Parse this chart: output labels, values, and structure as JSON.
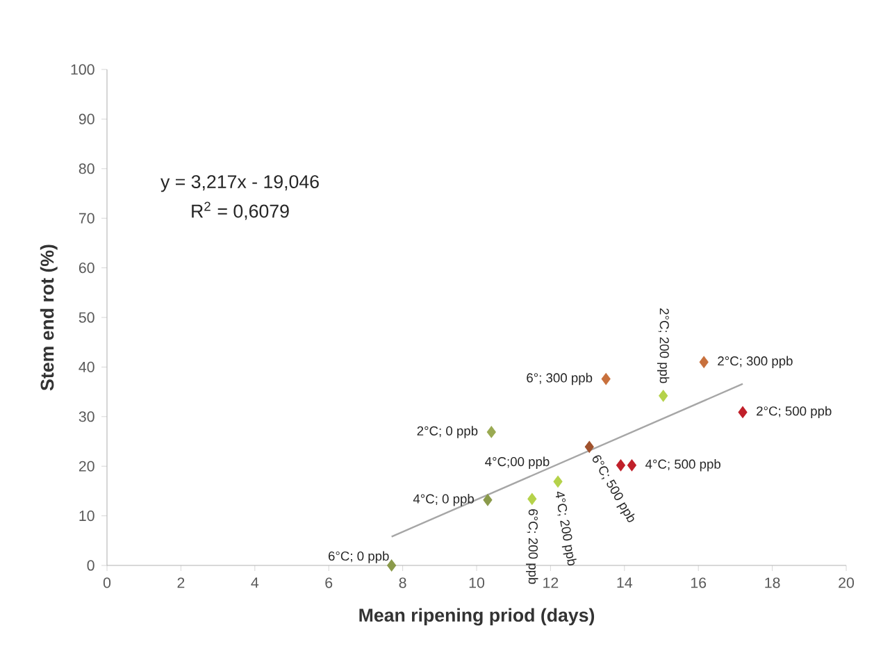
{
  "chart_data": {
    "type": "scatter",
    "xlabel": "Mean ripening priod (days)",
    "ylabel": "Stem end rot (%)",
    "xlim": [
      0,
      20
    ],
    "xticks": [
      0,
      2,
      4,
      6,
      8,
      10,
      12,
      14,
      16,
      18,
      20
    ],
    "ylim": [
      0,
      100
    ],
    "yticks": [
      0,
      10,
      20,
      30,
      40,
      50,
      60,
      70,
      80,
      90,
      100
    ],
    "marker": "diamond",
    "grid": false,
    "series": [
      {
        "x": [
          7.7,
          10.3,
          10.4,
          11.5,
          12.2,
          13.05,
          13.9,
          14.2,
          13.5,
          15.05,
          16.15,
          17.2
        ],
        "values": [
          0,
          13.2,
          26.9,
          13.4,
          16.9,
          23.9,
          20.2,
          20.2,
          37.6,
          34.2,
          41,
          30.9
        ],
        "colors": [
          "#8a9a4a",
          "#8a9a4a",
          "#9aaa52",
          "#b5d24a",
          "#b5d24a",
          "#a0522d",
          "#c0202a",
          "#c0202a",
          "#c8703c",
          "#b5d24a",
          "#c8703c",
          "#c0202a"
        ]
      },
      {
        "type": "line",
        "marker": "none",
        "color": "#a6a6a6",
        "x": [
          7.7,
          17.2
        ],
        "values": [
          5.8,
          36.6
        ]
      }
    ],
    "annotations": [
      {
        "text": "6°C; 0 ppb",
        "x": 7.7,
        "y": 0
      },
      {
        "text": "4°C; 0 ppb",
        "x": 10.3,
        "y": 13.2
      },
      {
        "text": "2°C; 0 ppb",
        "x": 10.4,
        "y": 26.9
      },
      {
        "text": "6°C; 200 ppb",
        "x": 11.5,
        "y": 13.4
      },
      {
        "text": "4°C; 200 ppb",
        "x": 12.2,
        "y": 16.9
      },
      {
        "text": "4°C;00 ppb",
        "x": 12.2,
        "y": 16.9
      },
      {
        "text": "6°C; 500 ppb",
        "x": 13.05,
        "y": 23.9
      },
      {
        "text": "4°C; 500 ppb",
        "x": 14.2,
        "y": 20.2
      },
      {
        "text": "6°; 300 ppb",
        "x": 13.5,
        "y": 37.6
      },
      {
        "text": "2°C; 200 ppb",
        "x": 15.05,
        "y": 34.2
      },
      {
        "text": "2°C; 300 ppb",
        "x": 16.15,
        "y": 41
      },
      {
        "text": "2°C; 500 ppb",
        "x": 17.2,
        "y": 30.9
      },
      "y = 3,217x - 19,046",
      "R$^{2}$ = 0,6079"
    ]
  }
}
